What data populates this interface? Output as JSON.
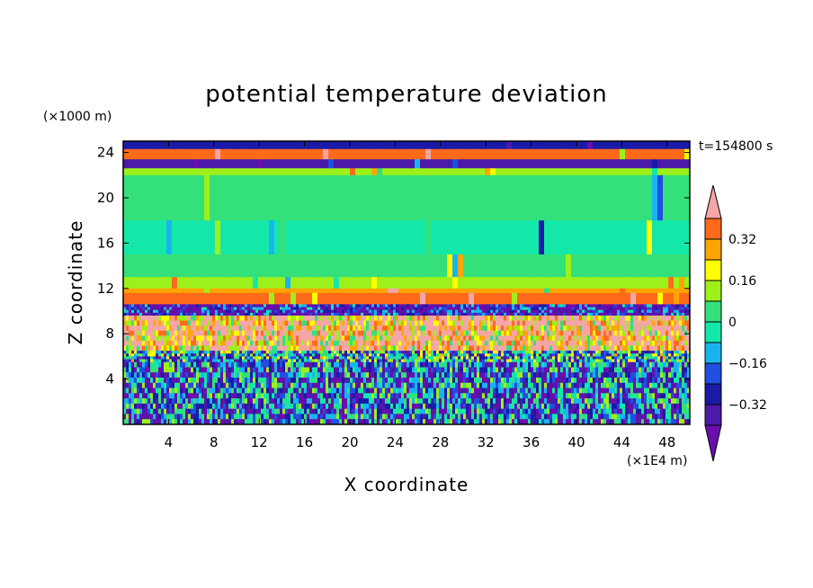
{
  "chart_data": {
    "type": "heatmap",
    "title": "potential temperature deviation",
    "xlabel": "X coordinate",
    "ylabel": "Z coordinate",
    "x_unit": "(×1E4 m)",
    "y_unit": "(×1000 m)",
    "time_label": "t=154800 s",
    "xlim": [
      0,
      50
    ],
    "ylim": [
      0,
      25
    ],
    "x_ticks": [
      4,
      8,
      12,
      16,
      20,
      24,
      28,
      32,
      36,
      40,
      44,
      48
    ],
    "y_ticks": [
      4,
      8,
      12,
      16,
      20,
      24
    ],
    "colorbar": {
      "levels": [
        -0.4,
        -0.32,
        -0.24,
        -0.16,
        -0.08,
        0,
        0.08,
        0.16,
        0.24,
        0.32,
        0.4
      ],
      "labeled_levels": [
        "0.32",
        "0.16",
        "0",
        "−0.16",
        "−0.32"
      ],
      "labeled_values": [
        0.32,
        0.16,
        0,
        -0.16,
        -0.32
      ],
      "colors": [
        "#6a0dad",
        "#4b1aa8",
        "#1a1aa8",
        "#1f4fe0",
        "#19b4f0",
        "#14e8a8",
        "#33e07a",
        "#9ef01a",
        "#ffff00",
        "#ffa500",
        "#ff6a1a",
        "#ee2222",
        "#f4a6a6"
      ],
      "extend": "both"
    },
    "vertical_layers": [
      {
        "z": [
          24.3,
          25.0
        ],
        "value": -0.3
      },
      {
        "z": [
          23.4,
          24.3
        ],
        "value": 0.38
      },
      {
        "z": [
          22.6,
          23.4
        ],
        "value": -0.35
      },
      {
        "z": [
          22.0,
          22.6
        ],
        "value": 0.12
      },
      {
        "z": [
          18.0,
          22.0
        ],
        "value": 0.02
      },
      {
        "z": [
          15.0,
          18.0
        ],
        "value": -0.03
      },
      {
        "z": [
          13.0,
          15.0
        ],
        "value": 0.05
      },
      {
        "z": [
          12.0,
          13.0
        ],
        "value": 0.14
      },
      {
        "z": [
          11.6,
          12.0
        ],
        "value": 0.24
      },
      {
        "z": [
          10.6,
          11.6
        ],
        "value": 0.33
      },
      {
        "z": [
          9.6,
          10.6
        ],
        "value": -0.38
      },
      {
        "z": [
          6.5,
          9.6
        ],
        "value": 0.38
      },
      {
        "z": [
          5.5,
          6.5
        ],
        "value": -0.1
      },
      {
        "z": [
          0.0,
          5.5
        ],
        "value": -0.2
      }
    ]
  }
}
